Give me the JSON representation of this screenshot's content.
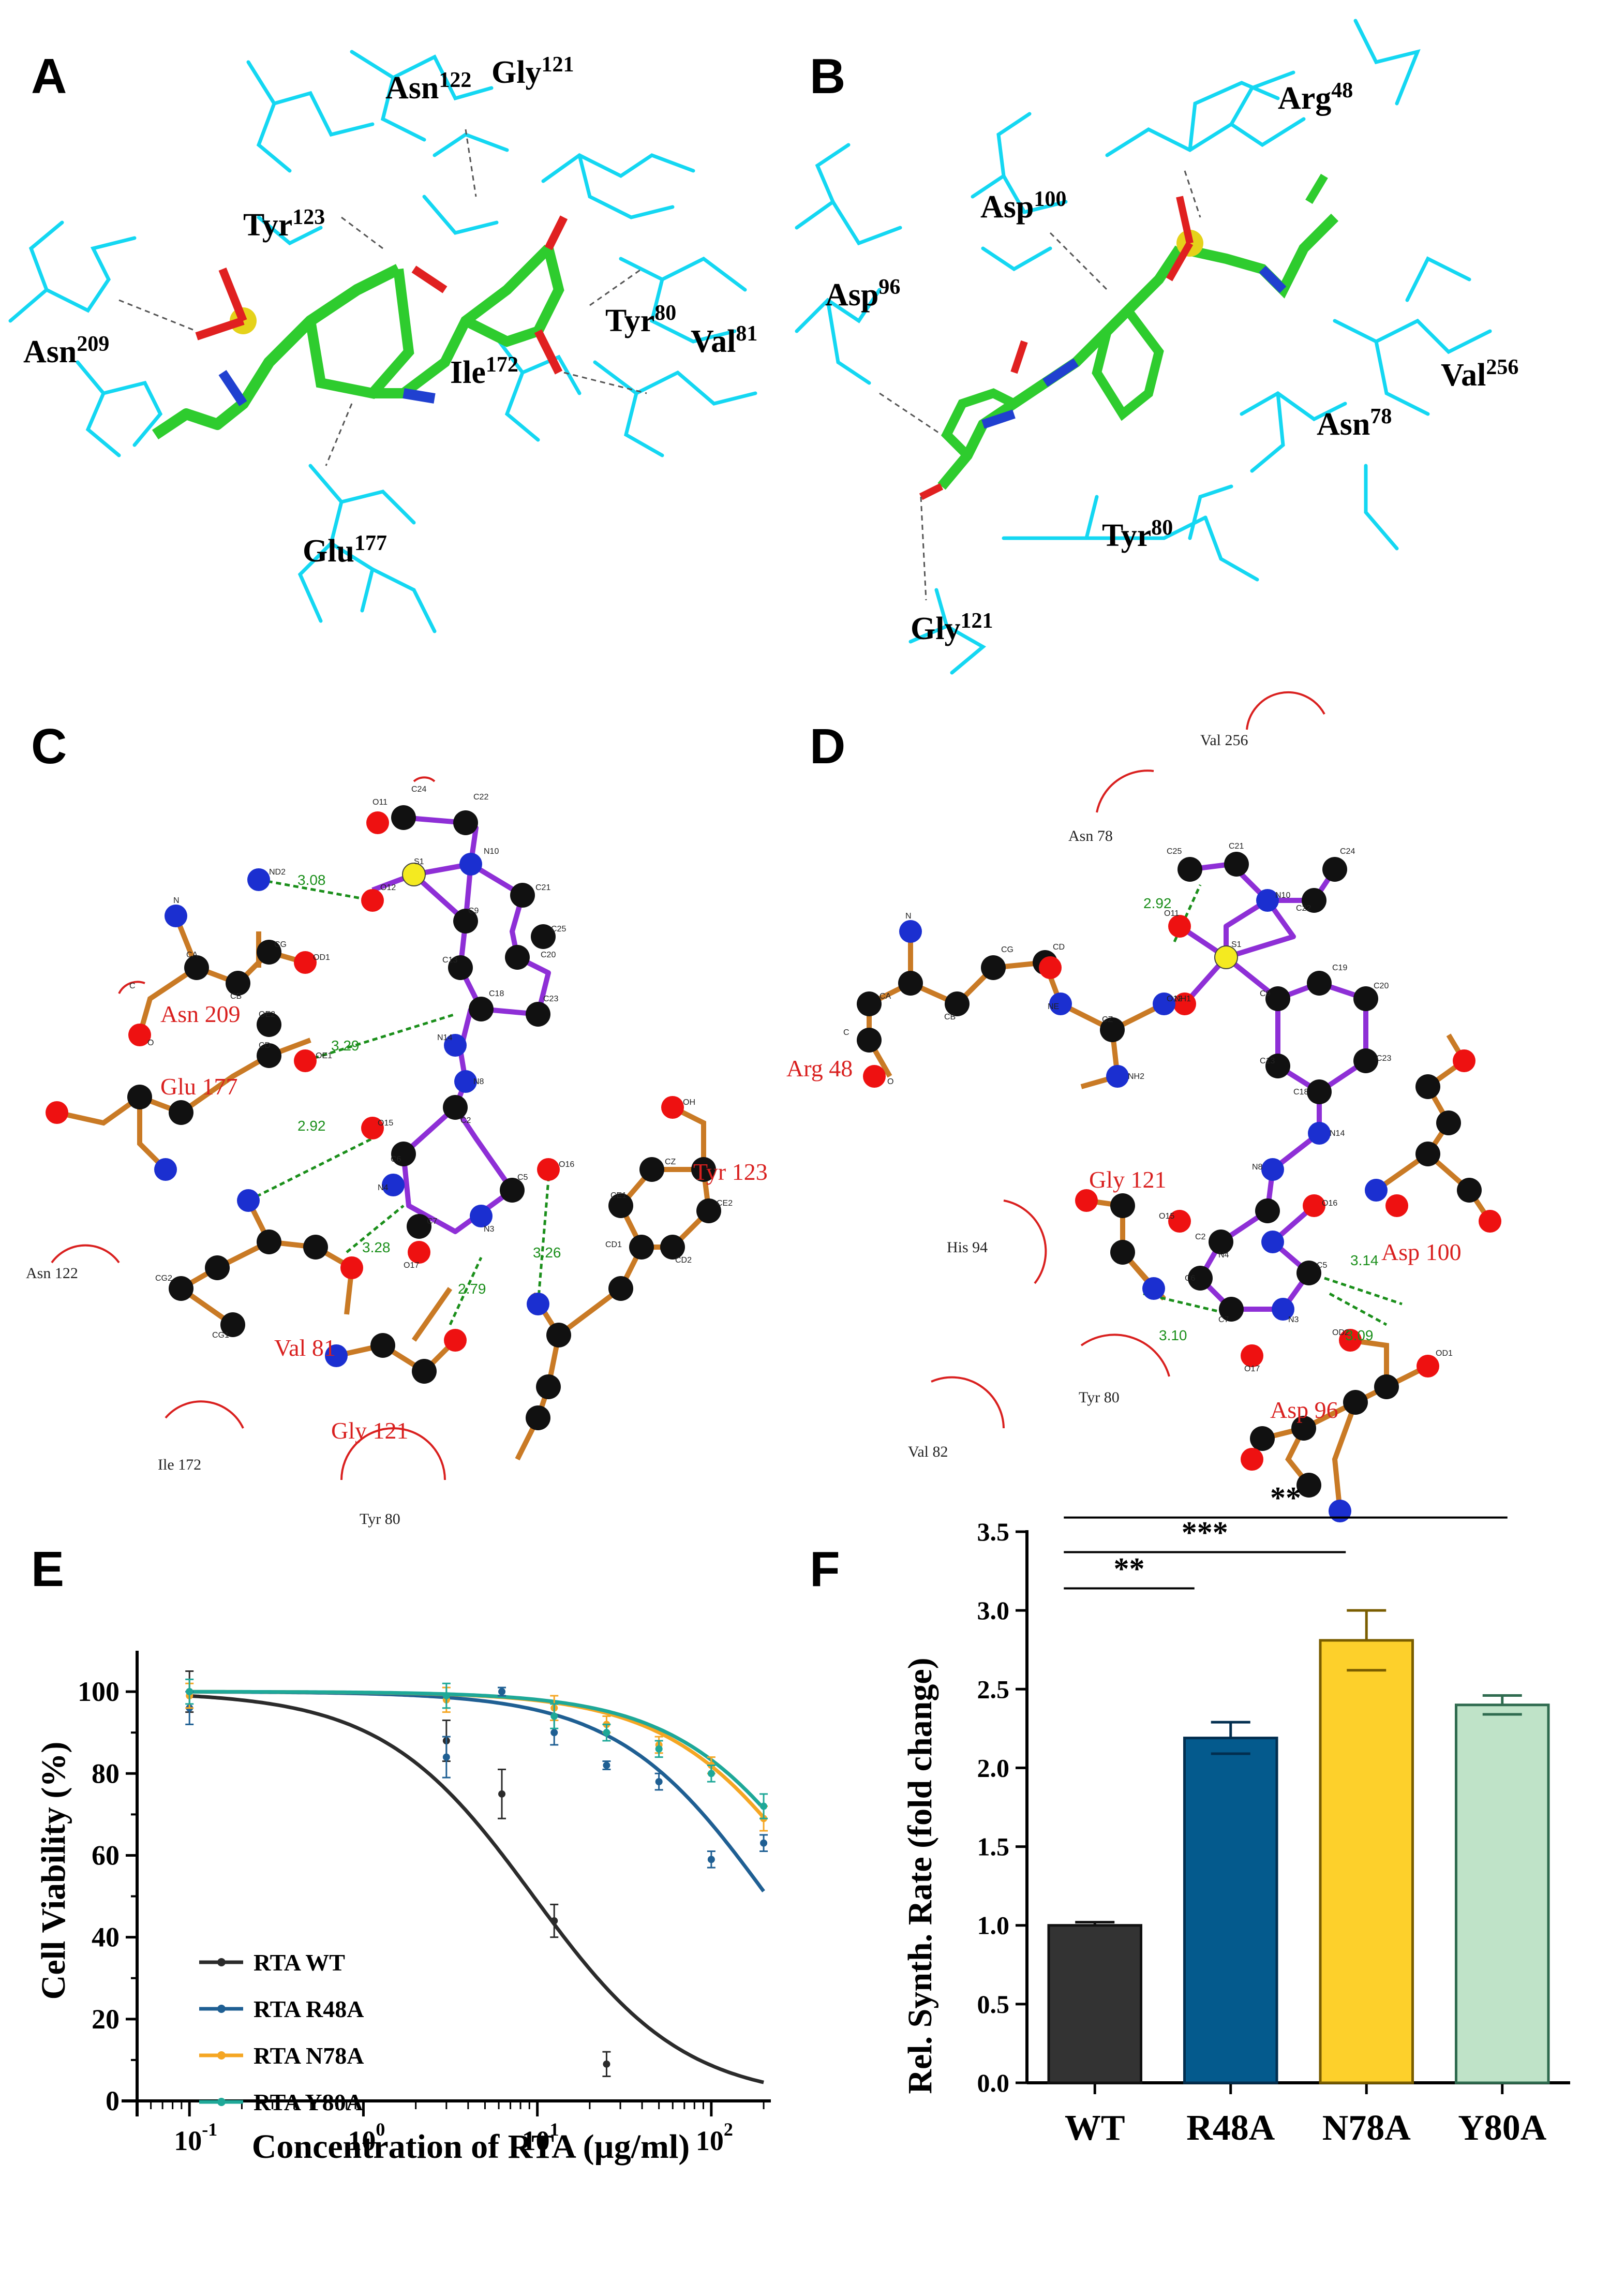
{
  "panels": {
    "A": {
      "label": "A",
      "residues": [
        {
          "name": "Asn",
          "num": "122"
        },
        {
          "name": "Gly",
          "num": "121"
        },
        {
          "name": "Tyr",
          "num": "123"
        },
        {
          "name": "Asn",
          "num": "209"
        },
        {
          "name": "Tyr",
          "num": "80"
        },
        {
          "name": "Val",
          "num": "81"
        },
        {
          "name": "Ile",
          "num": "172"
        },
        {
          "name": "Glu",
          "num": "177"
        }
      ]
    },
    "B": {
      "label": "B",
      "residues": [
        {
          "name": "Arg",
          "num": "48"
        },
        {
          "name": "Asp",
          "num": "100"
        },
        {
          "name": "Asp",
          "num": "96"
        },
        {
          "name": "Val",
          "num": "256"
        },
        {
          "name": "Asn",
          "num": "78"
        },
        {
          "name": "Tyr",
          "num": "80"
        },
        {
          "name": "Gly",
          "num": "121"
        }
      ]
    },
    "C": {
      "label": "C",
      "red_labels": [
        "Asn 209",
        "Glu 177",
        "Tyr 123",
        "Val 81",
        "Gly 121"
      ],
      "hydrophobic_labels": [
        "Asn 122",
        "Ile 172",
        "Tyr 80"
      ],
      "distances": [
        "3.08",
        "3.29",
        "2.92",
        "3.28",
        "2.79",
        "3.26"
      ],
      "atoms": [
        "C24",
        "C22",
        "O11",
        "N10",
        "C21",
        "S1",
        "O12",
        "C9",
        "C25",
        "C20",
        "C13",
        "C23",
        "C18",
        "ND2",
        "N",
        "CA",
        "CB",
        "CG",
        "OD1",
        "C",
        "O",
        "N14",
        "OE2",
        "CD",
        "OE1",
        "N8",
        "O15",
        "C2",
        "C6",
        "N4",
        "N3",
        "C5",
        "C7",
        "O17",
        "O16",
        "OH",
        "CZ",
        "CE1",
        "CE2",
        "CD1",
        "CD2",
        "CG2",
        "CG1"
      ]
    },
    "D": {
      "label": "D",
      "red_labels": [
        "Arg 48",
        "Gly 121",
        "Asp 100",
        "Asp 96"
      ],
      "hydrophobic_labels": [
        "Val 256",
        "Asn 78",
        "His 94",
        "Tyr 80",
        "Val 82"
      ],
      "distances": [
        "2.92",
        "3.14",
        "3.10",
        "3.09"
      ],
      "atoms": [
        "C25",
        "C21",
        "N10",
        "C24",
        "C22",
        "O11",
        "S1",
        "O12",
        "C19",
        "C20",
        "C9",
        "C13",
        "C23",
        "C18",
        "N14",
        "N8",
        "NE",
        "CZ",
        "NH2",
        "NH1",
        "CD",
        "CG",
        "CB",
        "CA",
        "N",
        "C",
        "O",
        "OD1",
        "OD2",
        "O15",
        "C2",
        "O16",
        "C6",
        "N4",
        "C5",
        "N3",
        "C7",
        "O17"
      ]
    },
    "E": {
      "label": "E"
    },
    "F": {
      "label": "F"
    }
  },
  "chart_data": [
    {
      "panel": "E",
      "type": "line",
      "xlabel": "Concentration of RTA (µg/ml)",
      "ylabel": "Cell Viability (%)",
      "xscale": "log",
      "xlim": [
        0.05,
        220
      ],
      "ylim": [
        0,
        110
      ],
      "xticks": [
        "10",
        "10",
        "10",
        "10"
      ],
      "xtick_exponents": [
        "-1",
        "0",
        "1",
        "2"
      ],
      "yticks": [
        "0",
        "20",
        "40",
        "60",
        "80",
        "100"
      ],
      "legend_position": "lower-left",
      "series": [
        {
          "name": "RTA WT",
          "color": "#2b2b2b",
          "ic50": 9.5,
          "hill": 1.0,
          "points": [
            {
              "x": 0.1,
              "y": 100,
              "e": 5
            },
            {
              "x": 3,
              "y": 88,
              "e": 5
            },
            {
              "x": 6.25,
              "y": 75,
              "e": 6
            },
            {
              "x": 12.5,
              "y": 44,
              "e": 4
            },
            {
              "x": 25,
              "y": 9,
              "e": 3
            }
          ]
        },
        {
          "name": "RTA R48A",
          "color": "#1f5f93",
          "ic50": 210,
          "hill": 1.0,
          "points": [
            {
              "x": 0.1,
              "y": 96,
              "e": 4
            },
            {
              "x": 3,
              "y": 84,
              "e": 5
            },
            {
              "x": 6.25,
              "y": 100,
              "e": 1
            },
            {
              "x": 12.5,
              "y": 90,
              "e": 3
            },
            {
              "x": 25,
              "y": 82,
              "e": 1
            },
            {
              "x": 50,
              "y": 78,
              "e": 2
            },
            {
              "x": 100,
              "y": 59,
              "e": 2
            },
            {
              "x": 200,
              "y": 63,
              "e": 2
            }
          ]
        },
        {
          "name": "RTA N78A",
          "color": "#f5a623",
          "ic50": 450,
          "hill": 1.0,
          "points": [
            {
              "x": 0.1,
              "y": 99,
              "e": 3
            },
            {
              "x": 3,
              "y": 98,
              "e": 3
            },
            {
              "x": 12.5,
              "y": 96,
              "e": 3
            },
            {
              "x": 25,
              "y": 92,
              "e": 2
            },
            {
              "x": 50,
              "y": 87,
              "e": 2
            },
            {
              "x": 100,
              "y": 82,
              "e": 2
            },
            {
              "x": 200,
              "y": 69,
              "e": 3
            }
          ]
        },
        {
          "name": "RTA Y80A",
          "color": "#1ea898",
          "ic50": 500,
          "hill": 1.0,
          "points": [
            {
              "x": 0.1,
              "y": 100,
              "e": 3
            },
            {
              "x": 3,
              "y": 99,
              "e": 3
            },
            {
              "x": 12.5,
              "y": 94,
              "e": 3
            },
            {
              "x": 25,
              "y": 90,
              "e": 2
            },
            {
              "x": 50,
              "y": 86,
              "e": 2
            },
            {
              "x": 100,
              "y": 80,
              "e": 2
            },
            {
              "x": 200,
              "y": 72,
              "e": 3
            }
          ]
        }
      ]
    },
    {
      "panel": "F",
      "type": "bar",
      "ylabel": "Rel. Synth. Rate (fold change)",
      "ylim": [
        0,
        3.5
      ],
      "yticks": [
        "0.0",
        "0.5",
        "1.0",
        "1.5",
        "2.0",
        "2.5",
        "3.0",
        "3.5"
      ],
      "categories": [
        "WT",
        "R48A",
        "N78A",
        "Y80A"
      ],
      "values": [
        1.0,
        2.19,
        2.81,
        2.4
      ],
      "errors": [
        0.02,
        0.1,
        0.19,
        0.06
      ],
      "colors": [
        "#333333",
        "#045a8d",
        "#fdd02b",
        "#bfe3c8"
      ],
      "edge_colors": [
        "#111111",
        "#022e4f",
        "#7a5d00",
        "#2f6b4f"
      ],
      "significance": [
        {
          "from": "WT",
          "to": "R48A",
          "label": "**"
        },
        {
          "from": "WT",
          "to": "N78A",
          "label": "***"
        },
        {
          "from": "WT",
          "to": "Y80A",
          "label": "**"
        }
      ]
    }
  ]
}
